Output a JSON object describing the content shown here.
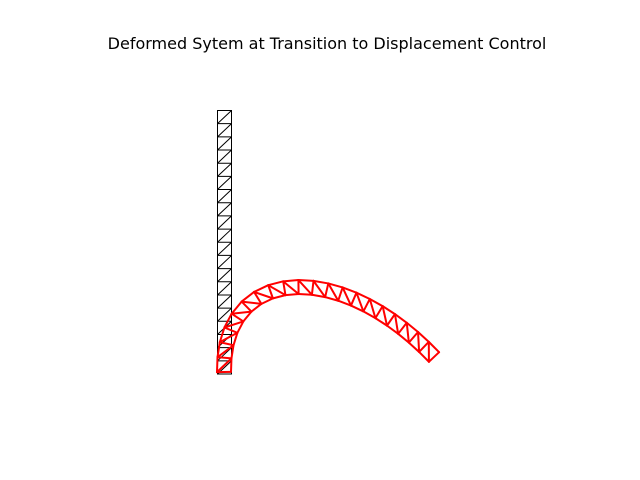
{
  "title": "Deformed Sytem at Transition to Displacement Control",
  "colors": {
    "background": "#ffffff",
    "undeformed": "#000000",
    "deformed": "#ff0000"
  },
  "structure": {
    "bays": 20,
    "undeformed_label": "",
    "deformed_label": ""
  }
}
